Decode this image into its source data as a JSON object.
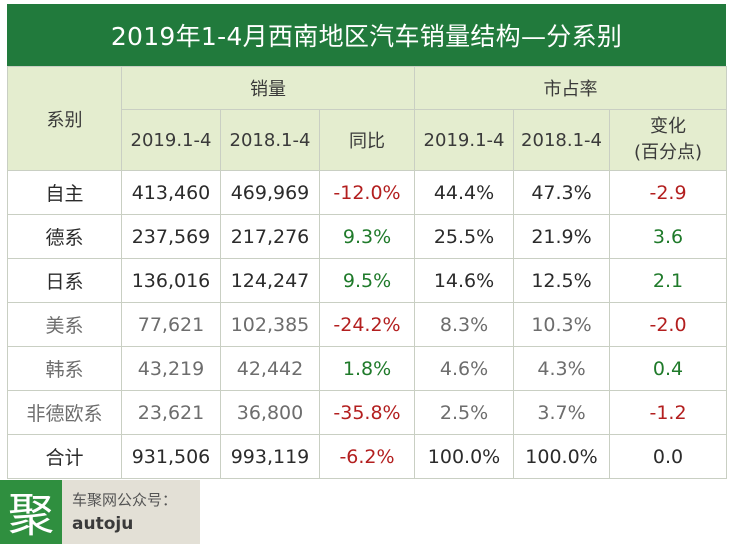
{
  "title": "2019年1-4月西南地区汽车销量结构—分系别",
  "headers": {
    "series": "系别",
    "sales": "销量",
    "share": "市占率",
    "y2019": "2019.1-4",
    "y2018": "2018.1-4",
    "yoy": "同比",
    "y2019_share": "2019.1-4",
    "y2018_share": "2018.1-4",
    "change_line1": "变化",
    "change_line2": "(百分点)"
  },
  "rows": [
    {
      "name": "自主",
      "s2019": "413,460",
      "s2018": "469,969",
      "yoy": "-12.0%",
      "sh2019": "44.4%",
      "sh2018": "47.3%",
      "chg": "-2.9"
    },
    {
      "name": "德系",
      "s2019": "237,569",
      "s2018": "217,276",
      "yoy": "9.3%",
      "sh2019": "25.5%",
      "sh2018": "21.9%",
      "chg": "3.6"
    },
    {
      "name": "日系",
      "s2019": "136,016",
      "s2018": "124,247",
      "yoy": "9.5%",
      "sh2019": "14.6%",
      "sh2018": "12.5%",
      "chg": "2.1"
    },
    {
      "name": "美系",
      "s2019": "77,621",
      "s2018": "102,385",
      "yoy": "-24.2%",
      "sh2019": "8.3%",
      "sh2018": "10.3%",
      "chg": "-2.0"
    },
    {
      "name": "韩系",
      "s2019": "43,219",
      "s2018": "42,442",
      "yoy": "1.8%",
      "sh2019": "4.6%",
      "sh2018": "4.3%",
      "chg": "0.4"
    },
    {
      "name": "非德欧系",
      "s2019": "23,621",
      "s2018": "36,800",
      "yoy": "-35.8%",
      "sh2019": "2.5%",
      "sh2018": "3.7%",
      "chg": "-1.2"
    },
    {
      "name": "合计",
      "s2019": "931,506",
      "s2018": "993,119",
      "yoy": "-6.2%",
      "sh2019": "100.0%",
      "sh2018": "100.0%",
      "chg": "0.0"
    }
  ],
  "logo": {
    "mark": "聚",
    "line1": "车聚网公众号：",
    "line2": "autoju"
  },
  "colors": {
    "title_bg": "#217a3c",
    "header_bg": "#e4edcf",
    "negative": "#b31f1f",
    "positive": "#1f7a2a"
  },
  "chart_data": {
    "type": "table",
    "title": "2019年1-4月西南地区汽车销量结构—分系别",
    "columns": [
      "系别",
      "销量 2019.1-4",
      "销量 2018.1-4",
      "销量 同比",
      "市占率 2019.1-4",
      "市占率 2018.1-4",
      "市占率 变化(百分点)"
    ],
    "rows": [
      [
        "自主",
        413460,
        469969,
        -12.0,
        44.4,
        47.3,
        -2.9
      ],
      [
        "德系",
        237569,
        217276,
        9.3,
        25.5,
        21.9,
        3.6
      ],
      [
        "日系",
        136016,
        124247,
        9.5,
        14.6,
        12.5,
        2.1
      ],
      [
        "美系",
        77621,
        102385,
        -24.2,
        8.3,
        10.3,
        -2.0
      ],
      [
        "韩系",
        43219,
        42442,
        1.8,
        4.6,
        4.3,
        0.4
      ],
      [
        "非德欧系",
        23621,
        36800,
        -35.8,
        2.5,
        3.7,
        -1.2
      ],
      [
        "合计",
        931506,
        993119,
        -6.2,
        100.0,
        100.0,
        0.0
      ]
    ]
  }
}
